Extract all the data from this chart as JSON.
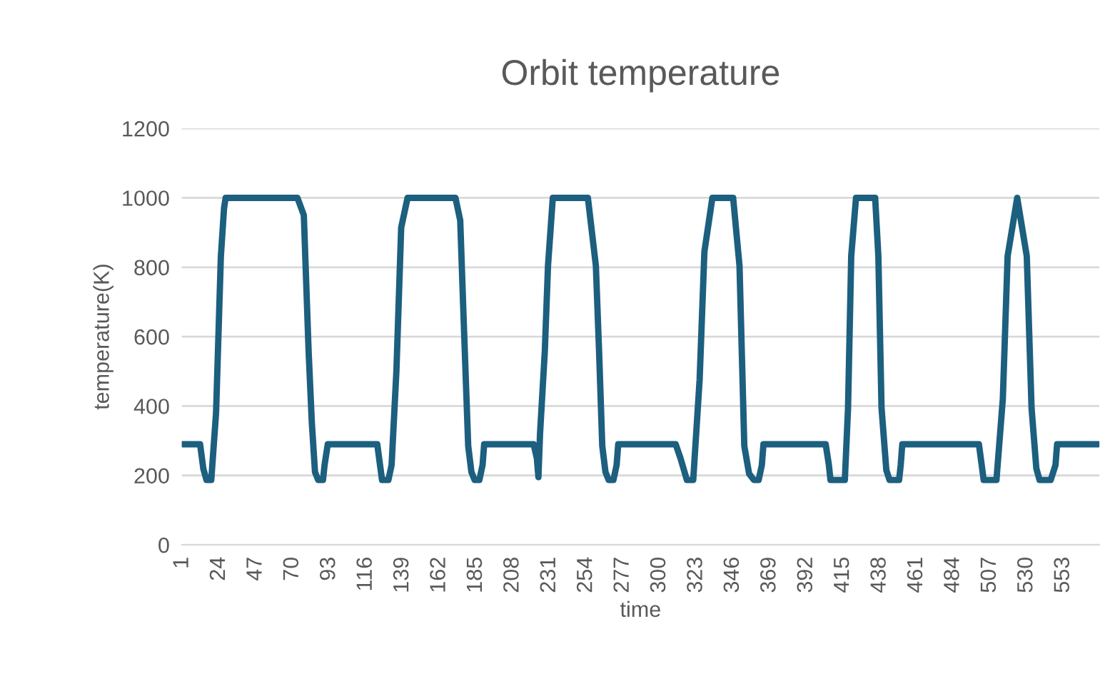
{
  "chart_data": {
    "type": "line",
    "title": "Orbit temperature",
    "xlabel": "time",
    "ylabel": "temperature(K)",
    "x": [
      1,
      12,
      14,
      16,
      19,
      22,
      25,
      27,
      28,
      73,
      77,
      80,
      82,
      84,
      86,
      89,
      90,
      92,
      123,
      126,
      130,
      132,
      135,
      138,
      142,
      172,
      175,
      177,
      180,
      182,
      184,
      187,
      189,
      190,
      221,
      223,
      224,
      225,
      228,
      230,
      233,
      255,
      260,
      262,
      264,
      266,
      268,
      271,
      273,
      274,
      310,
      313,
      317,
      321,
      325,
      328,
      333,
      346,
      350,
      353,
      356,
      359,
      362,
      364,
      365,
      404,
      406,
      407,
      416,
      418,
      420,
      423,
      435,
      437,
      439,
      442,
      444,
      450,
      451,
      452,
      500,
      503,
      511,
      515,
      518,
      524,
      530,
      533,
      536,
      538,
      545,
      548,
      549,
      575
    ],
    "series": [
      {
        "color": "#1c5f7f",
        "values": [
          290,
          290,
          220,
          187,
          187,
          380,
          830,
          970,
          1000,
          1000,
          950,
          558,
          353,
          210,
          187,
          187,
          230,
          290,
          290,
          187,
          187,
          230,
          500,
          914,
          1000,
          1000,
          935,
          668,
          285,
          210,
          187,
          187,
          230,
          290,
          290,
          250,
          195,
          320,
          558,
          804,
          1000,
          1000,
          804,
          558,
          285,
          210,
          187,
          187,
          230,
          290,
          290,
          250,
          187,
          187,
          476,
          845,
          1000,
          1000,
          804,
          285,
          205,
          187,
          187,
          230,
          290,
          290,
          230,
          187,
          187,
          394,
          832,
          1000,
          1000,
          832,
          394,
          215,
          187,
          187,
          230,
          290,
          290,
          187,
          187,
          421,
          832,
          1000,
          832,
          394,
          220,
          187,
          187,
          230,
          290,
          290
        ]
      }
    ],
    "xlim": [
      0.5,
      575.5
    ],
    "xticks": [
      1,
      24,
      47,
      70,
      93,
      116,
      139,
      162,
      185,
      208,
      231,
      254,
      277,
      300,
      323,
      346,
      369,
      392,
      415,
      438,
      461,
      484,
      507,
      530,
      553
    ],
    "ylim": [
      0,
      1200
    ],
    "yticks": [
      0,
      200,
      400,
      600,
      800,
      1000,
      1200
    ],
    "grid": "y",
    "marker": "none",
    "line_style": "solid"
  }
}
